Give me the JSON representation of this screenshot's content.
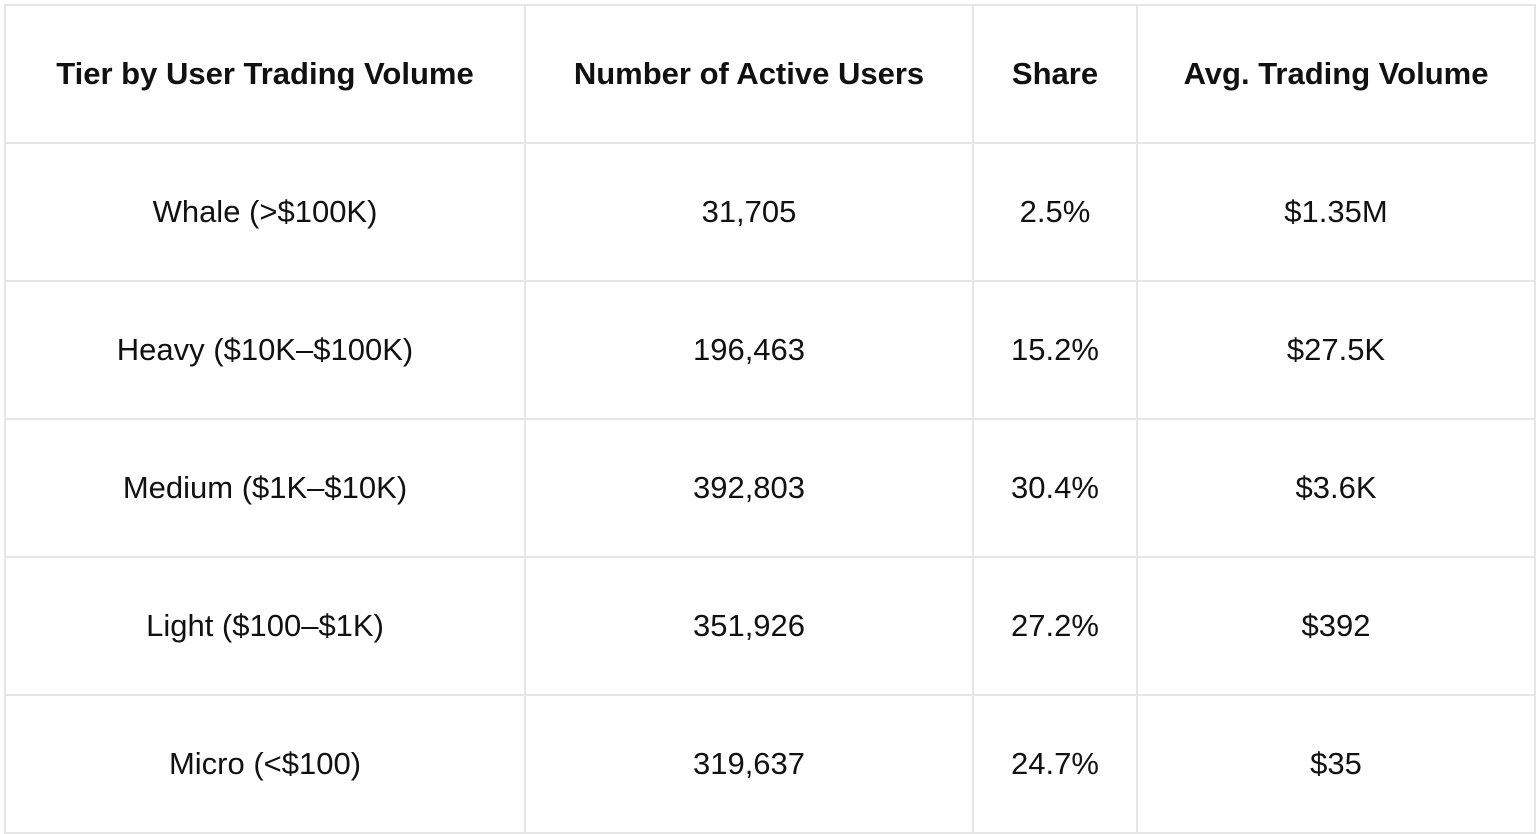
{
  "chart_data": {
    "type": "table",
    "columns": [
      "Tier by User Trading Volume",
      "Number of Active Users",
      "Share",
      "Avg. Trading Volume"
    ],
    "rows": [
      [
        "Whale (>$100K)",
        "31,705",
        "2.5%",
        "$1.35M"
      ],
      [
        "Heavy ($10K–$100K)",
        "196,463",
        "15.2%",
        "$27.5K"
      ],
      [
        "Medium ($1K–$10K)",
        "392,803",
        "30.4%",
        "$3.6K"
      ],
      [
        "Light ($100–$1K)",
        "351,926",
        "27.2%",
        "$392"
      ],
      [
        "Micro (<$100)",
        "319,637",
        "24.7%",
        "$35"
      ]
    ]
  }
}
